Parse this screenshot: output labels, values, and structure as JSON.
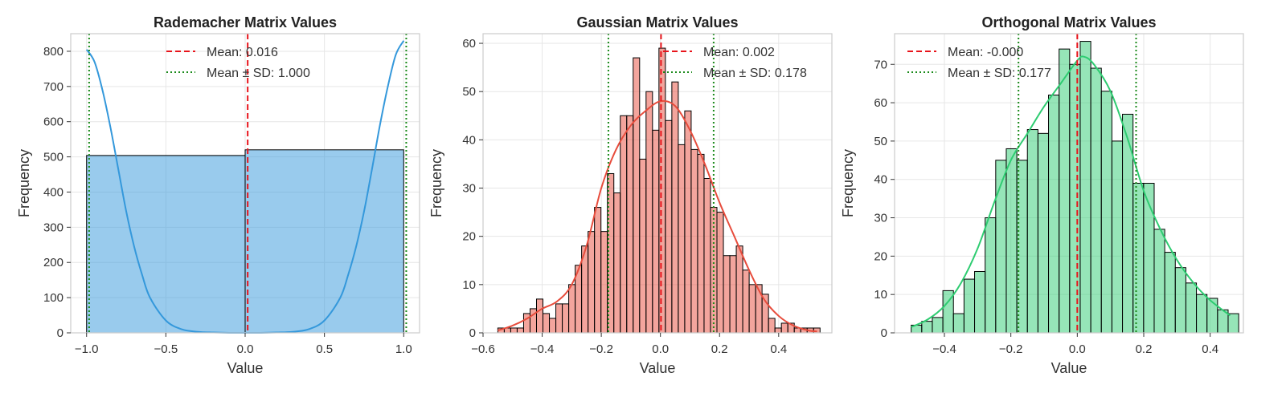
{
  "chart_data": [
    {
      "type": "bar",
      "title": "Rademacher Matrix Values",
      "xlabel": "Value",
      "ylabel": "Frequency",
      "xlim": [
        -1.1,
        1.1
      ],
      "ylim": [
        0,
        850
      ],
      "xticks": [
        -1.0,
        -0.5,
        0.0,
        0.5,
        1.0
      ],
      "xtick_labels": [
        "−1.0",
        "−0.5",
        "0.0",
        "0.5",
        "1.0"
      ],
      "yticks": [
        0,
        100,
        200,
        300,
        400,
        500,
        600,
        700,
        800
      ],
      "ytick_labels": [
        "0",
        "100",
        "200",
        "300",
        "400",
        "500",
        "600",
        "700",
        "800"
      ],
      "grid": true,
      "color": "#3498db",
      "bin_edges": [
        -1.0,
        0.0,
        1.0
      ],
      "counts": [
        504,
        520
      ],
      "kde": {
        "x": [
          -1.0,
          -0.95,
          -0.9,
          -0.85,
          -0.8,
          -0.75,
          -0.7,
          -0.65,
          -0.6,
          -0.5,
          -0.4,
          -0.3,
          -0.2,
          -0.1,
          0.0,
          0.1,
          0.2,
          0.3,
          0.4,
          0.5,
          0.6,
          0.65,
          0.7,
          0.75,
          0.8,
          0.85,
          0.9,
          0.95,
          1.0
        ],
        "y": [
          805,
          770,
          690,
          585,
          465,
          345,
          245,
          165,
          100,
          35,
          10,
          3,
          1,
          0,
          0,
          0,
          1,
          3,
          10,
          35,
          100,
          165,
          245,
          345,
          465,
          590,
          700,
          790,
          830
        ]
      },
      "mean": 0.016,
      "sd_lines": [
        -0.984,
        1.016
      ],
      "legend": {
        "placement": "upper-center",
        "entries": [
          "Mean: 0.016",
          "Mean ± SD: 1.000"
        ]
      }
    },
    {
      "type": "bar",
      "title": "Gaussian Matrix Values",
      "xlabel": "Value",
      "ylabel": "Frequency",
      "xlim": [
        -0.6,
        0.58
      ],
      "ylim": [
        0,
        62
      ],
      "xticks": [
        -0.6,
        -0.4,
        -0.2,
        0.0,
        0.2,
        0.4
      ],
      "xtick_labels": [
        "−0.6",
        "−0.4",
        "−0.2",
        "0.0",
        "0.2",
        "0.4"
      ],
      "yticks": [
        0,
        10,
        20,
        30,
        40,
        50,
        60
      ],
      "ytick_labels": [
        "0",
        "10",
        "20",
        "30",
        "40",
        "50",
        "60"
      ],
      "grid": true,
      "color": "#e74c3c",
      "bin_start": -0.55,
      "bin_width": 0.0218,
      "counts": [
        1,
        1,
        1,
        1,
        4,
        5,
        7,
        4,
        3,
        6,
        6,
        10,
        14,
        18,
        21,
        26,
        21,
        33,
        29,
        45,
        45,
        57,
        36,
        50,
        42,
        59,
        44,
        52,
        39,
        46,
        38,
        37,
        32,
        26,
        25,
        16,
        16,
        18,
        13,
        10,
        10,
        8,
        3,
        1,
        2,
        2,
        1,
        1,
        1,
        1
      ],
      "kde": {
        "x": [
          -0.55,
          -0.5,
          -0.45,
          -0.4,
          -0.35,
          -0.3,
          -0.25,
          -0.2,
          -0.15,
          -0.1,
          -0.05,
          0.0,
          0.05,
          0.1,
          0.15,
          0.2,
          0.25,
          0.3,
          0.35,
          0.4,
          0.45,
          0.5,
          0.53
        ],
        "y": [
          0.5,
          1.5,
          3,
          5,
          6.5,
          10,
          18,
          30,
          38,
          43,
          46,
          48,
          47,
          42,
          35,
          27,
          20,
          13,
          7,
          3.5,
          1.5,
          0.5,
          0.3
        ]
      },
      "mean": 0.002,
      "sd_lines": [
        -0.176,
        0.18
      ],
      "legend": {
        "placement": "upper-right",
        "entries": [
          "Mean: 0.002",
          "Mean ± SD: 0.178"
        ]
      }
    },
    {
      "type": "bar",
      "title": "Orthogonal Matrix Values",
      "xlabel": "Value",
      "ylabel": "Frequency",
      "xlim": [
        -0.55,
        0.5
      ],
      "ylim": [
        0,
        78
      ],
      "xticks": [
        -0.4,
        -0.2,
        0.0,
        0.2,
        0.4
      ],
      "xtick_labels": [
        "−0.4",
        "−0.2",
        "0.0",
        "0.2",
        "0.4"
      ],
      "yticks": [
        0,
        10,
        20,
        30,
        40,
        50,
        60,
        70
      ],
      "ytick_labels": [
        "0",
        "10",
        "20",
        "30",
        "40",
        "50",
        "60",
        "70"
      ],
      "grid": true,
      "color": "#2ecc71",
      "bin_start": -0.5,
      "bin_width": 0.0318,
      "counts": [
        2,
        3,
        4,
        11,
        5,
        14,
        16,
        30,
        45,
        48,
        45,
        53,
        52,
        62,
        74,
        70,
        76,
        69,
        63,
        50,
        57,
        39,
        39,
        27,
        21,
        17,
        13,
        10,
        9,
        6,
        5
      ],
      "kde": {
        "x": [
          -0.5,
          -0.45,
          -0.4,
          -0.35,
          -0.3,
          -0.25,
          -0.2,
          -0.15,
          -0.1,
          -0.05,
          0.0,
          0.02,
          0.05,
          0.1,
          0.15,
          0.2,
          0.25,
          0.3,
          0.35,
          0.4,
          0.46
        ],
        "y": [
          1.5,
          3.5,
          7,
          13,
          22,
          34,
          45,
          52,
          59,
          65,
          71,
          72,
          70,
          63,
          51,
          37,
          27,
          19,
          13,
          8.5,
          4.5
        ]
      },
      "mean": -0.0,
      "sd_lines": [
        -0.177,
        0.177
      ],
      "legend": {
        "placement": "upper-left",
        "entries": [
          "Mean: -0.000",
          "Mean ± SD: 0.177"
        ]
      }
    }
  ]
}
